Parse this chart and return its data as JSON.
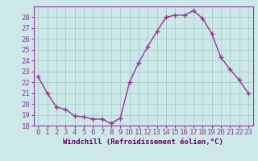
{
  "x": [
    0,
    1,
    2,
    3,
    4,
    5,
    6,
    7,
    8,
    9,
    10,
    11,
    12,
    13,
    14,
    15,
    16,
    17,
    18,
    19,
    20,
    21,
    22,
    23
  ],
  "y": [
    22.5,
    21.0,
    19.7,
    19.5,
    18.9,
    18.8,
    18.6,
    18.6,
    18.2,
    18.7,
    22.0,
    23.8,
    25.3,
    26.7,
    28.0,
    28.2,
    28.2,
    28.6,
    27.9,
    26.5,
    24.3,
    23.2,
    22.2,
    21.0
  ],
  "line_color": "#993399",
  "marker": "+",
  "marker_size": 4,
  "marker_linewidth": 1.0,
  "xlabel": "Windchill (Refroidissement éolien,°C)",
  "xlabel_color": "#660066",
  "xlabel_fontsize": 6.5,
  "xtick_labels": [
    "0",
    "1",
    "2",
    "3",
    "4",
    "5",
    "6",
    "7",
    "8",
    "9",
    "10",
    "11",
    "12",
    "13",
    "14",
    "15",
    "16",
    "17",
    "18",
    "19",
    "20",
    "21",
    "22",
    "23"
  ],
  "ylim": [
    18,
    29
  ],
  "yticks": [
    18,
    19,
    20,
    21,
    22,
    23,
    24,
    25,
    26,
    27,
    28
  ],
  "tick_fontsize": 6.5,
  "background_color": "#cce8e8",
  "grid_color": "#aacccc",
  "line_width": 1.0,
  "spine_color": "#993399"
}
